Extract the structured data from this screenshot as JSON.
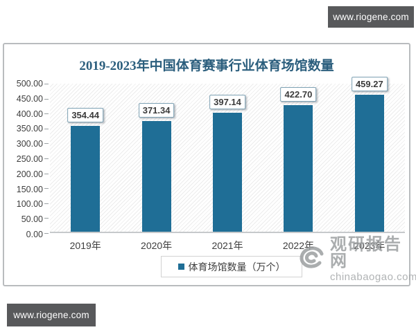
{
  "page": {
    "watermark_top_right": "www.riogene.com",
    "watermark_bottom_left": "www.riogene.com",
    "site_watermark": {
      "name": "观研报告网",
      "url": "chinabaogao.com"
    }
  },
  "chart_data": {
    "type": "bar",
    "title": "2019-2023年中国体育赛事行业体育场馆数量",
    "categories": [
      "2019年",
      "2020年",
      "2021年",
      "2022年",
      "2023年"
    ],
    "values": [
      354.44,
      371.34,
      397.14,
      422.7,
      459.27
    ],
    "value_labels": [
      "354.44",
      "371.34",
      "397.14",
      "422.70",
      "459.27"
    ],
    "y_ticks": [
      "500.00",
      "450.00",
      "400.00",
      "350.00",
      "300.00",
      "250.00",
      "200.00",
      "150.00",
      "100.00",
      "50.00",
      "0.00"
    ],
    "ylim": [
      0,
      500
    ],
    "ylabel": "",
    "xlabel": "",
    "legend": "体育场馆数量（万个）",
    "legend_position": "bottom",
    "grid": false,
    "colors": {
      "bar": "#1f6e96",
      "title": "#2b5e7d",
      "watermark_bg": "#58595b",
      "watermark_gray": "#9c9fa1"
    }
  }
}
